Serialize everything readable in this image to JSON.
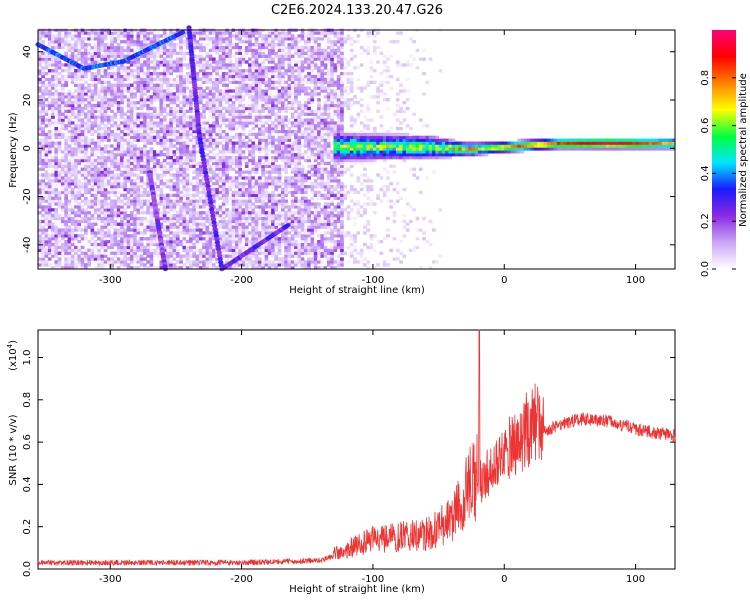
{
  "figure": {
    "title": "C2E6.2024.133.20.47.G26"
  },
  "chart_data": [
    {
      "type": "heatmap",
      "xlabel": "Height of straight line (km)",
      "ylabel": "Frequency (Hz)",
      "xlim": [
        -355,
        130
      ],
      "ylim": [
        -50,
        49
      ],
      "x_ticks": [
        -300,
        -200,
        -100,
        0,
        100
      ],
      "y_ticks": [
        -40,
        -20,
        0,
        20,
        40
      ],
      "colorbar": {
        "label": "Normalized spectral amplitude",
        "range": [
          0.0,
          1.0
        ],
        "ticks": [
          0.0,
          0.2,
          0.4,
          0.6,
          0.8
        ],
        "stops": [
          "#ffffff",
          "#c9a6f7",
          "#8a2be2",
          "#1a1aff",
          "#00e5ff",
          "#00ff40",
          "#ffff00",
          "#ff8000",
          "#ff0000",
          "#ff0077"
        ]
      },
      "features": {
        "diffuse_region_x": [
          -355,
          -125
        ],
        "main_ridge": [
          {
            "x": -130,
            "y": 0,
            "amp": 0.35,
            "halfwidth_hz": 6
          },
          {
            "x": -60,
            "y": 0,
            "amp": 0.4,
            "halfwidth_hz": 5
          },
          {
            "x": -30,
            "y": -1,
            "amp": 0.45,
            "halfwidth_hz": 3
          },
          {
            "x": 0,
            "y": 0,
            "amp": 0.7,
            "halfwidth_hz": 2.5
          },
          {
            "x": 40,
            "y": 1.5,
            "amp": 0.75,
            "halfwidth_hz": 2.5
          },
          {
            "x": 80,
            "y": 1.5,
            "amp": 0.9,
            "halfwidth_hz": 2.5
          },
          {
            "x": 130,
            "y": 1.5,
            "amp": 0.6,
            "halfwidth_hz": 2.5
          }
        ],
        "streaks": [
          {
            "points": [
              [
                -355,
                43
              ],
              [
                -320,
                33
              ],
              [
                -290,
                36
              ],
              [
                -245,
                48
              ]
            ],
            "amp": 0.3
          },
          {
            "points": [
              [
                -240,
                50
              ],
              [
                -232,
                5
              ],
              [
                -215,
                -50
              ]
            ],
            "amp": 0.2
          },
          {
            "points": [
              [
                -270,
                -10
              ],
              [
                -258,
                -50
              ]
            ],
            "amp": 0.15
          },
          {
            "points": [
              [
                -215,
                -50
              ],
              [
                -165,
                -32
              ]
            ],
            "amp": 0.2
          }
        ]
      }
    },
    {
      "type": "line",
      "series": [
        {
          "color": "#ee3333"
        }
      ],
      "xlabel": "Height of straight line (km)",
      "ylabel": "SNR (10 * v/v)",
      "y_multiplier_label": "(x10",
      "y_multiplier_exp": "4",
      "xlim": [
        -355,
        130
      ],
      "ylim": [
        0.0,
        1.13
      ],
      "x_ticks": [
        -300,
        -200,
        -100,
        0,
        100
      ],
      "y_ticks": [
        0.0,
        0.2,
        0.4,
        0.6,
        0.8,
        1.0
      ],
      "envelope": [
        {
          "x": -355,
          "y": 0.03
        },
        {
          "x": -200,
          "y": 0.03
        },
        {
          "x": -140,
          "y": 0.04
        },
        {
          "x": -120,
          "y": 0.08
        },
        {
          "x": -100,
          "y": 0.12
        },
        {
          "x": -60,
          "y": 0.14
        },
        {
          "x": -40,
          "y": 0.2
        },
        {
          "x": -25,
          "y": 0.35
        },
        {
          "x": -15,
          "y": 0.4
        },
        {
          "x": 0,
          "y": 0.5
        },
        {
          "x": 20,
          "y": 0.62
        },
        {
          "x": 40,
          "y": 0.68
        },
        {
          "x": 60,
          "y": 0.71
        },
        {
          "x": 80,
          "y": 0.7
        },
        {
          "x": 100,
          "y": 0.66
        },
        {
          "x": 130,
          "y": 0.63
        }
      ],
      "spike": {
        "x": -19,
        "y": 1.13
      }
    }
  ]
}
